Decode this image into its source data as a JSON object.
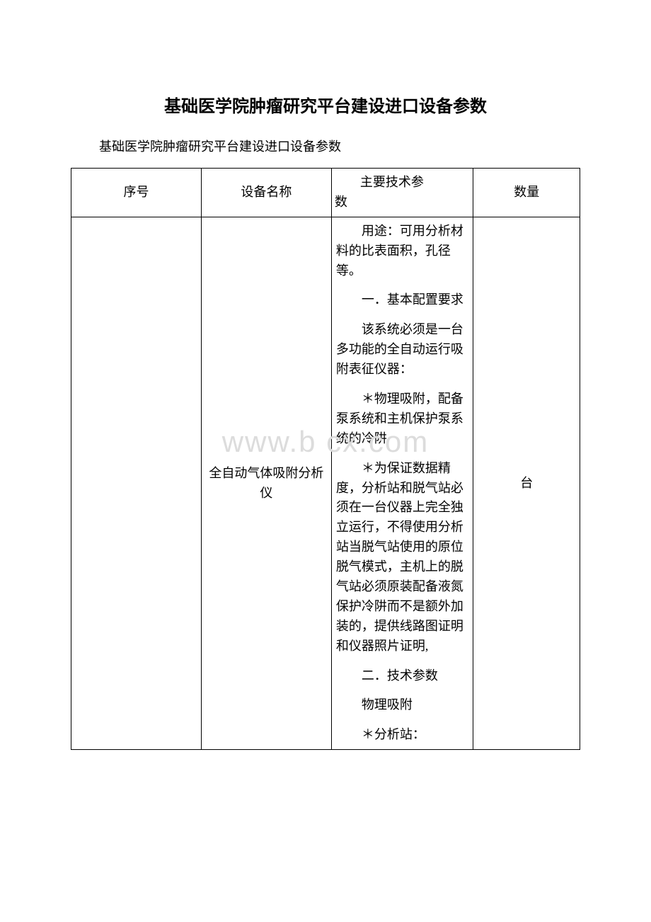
{
  "title": "基础医学院肿瘤研究平台建设进口设备参数",
  "subtitle": "基础医学院肿瘤研究平台建设进口设备参数",
  "watermark": "www.b   cx.com",
  "table": {
    "headers": {
      "seq": "序号",
      "name": "设备名称",
      "spec_line1": "主要技术参",
      "spec_line2": "数",
      "qty": "数量"
    },
    "row": {
      "name": "全自动气体吸附分析仪",
      "qty": "台",
      "spec_paras": [
        "用途：可用分析材料的比表面积，孔径等。",
        "一．基本配置要求",
        "该系统必须是一台多功能的全自动运行吸附表征仪器：",
        "＊物理吸附，配备泵系统和主机保护泵系统的冷阱",
        "＊为保证数据精度，分析站和脱气站必须在一台仪器上完全独立运行，不得使用分析站当脱气站使用的原位脱气模式，主机上的脱气站必须原装配备液氮保护冷阱而不是额外加装的，提供线路图证明和仪器照片证明,",
        "二．技术参数",
        "物理吸附",
        "＊分析站："
      ]
    }
  }
}
